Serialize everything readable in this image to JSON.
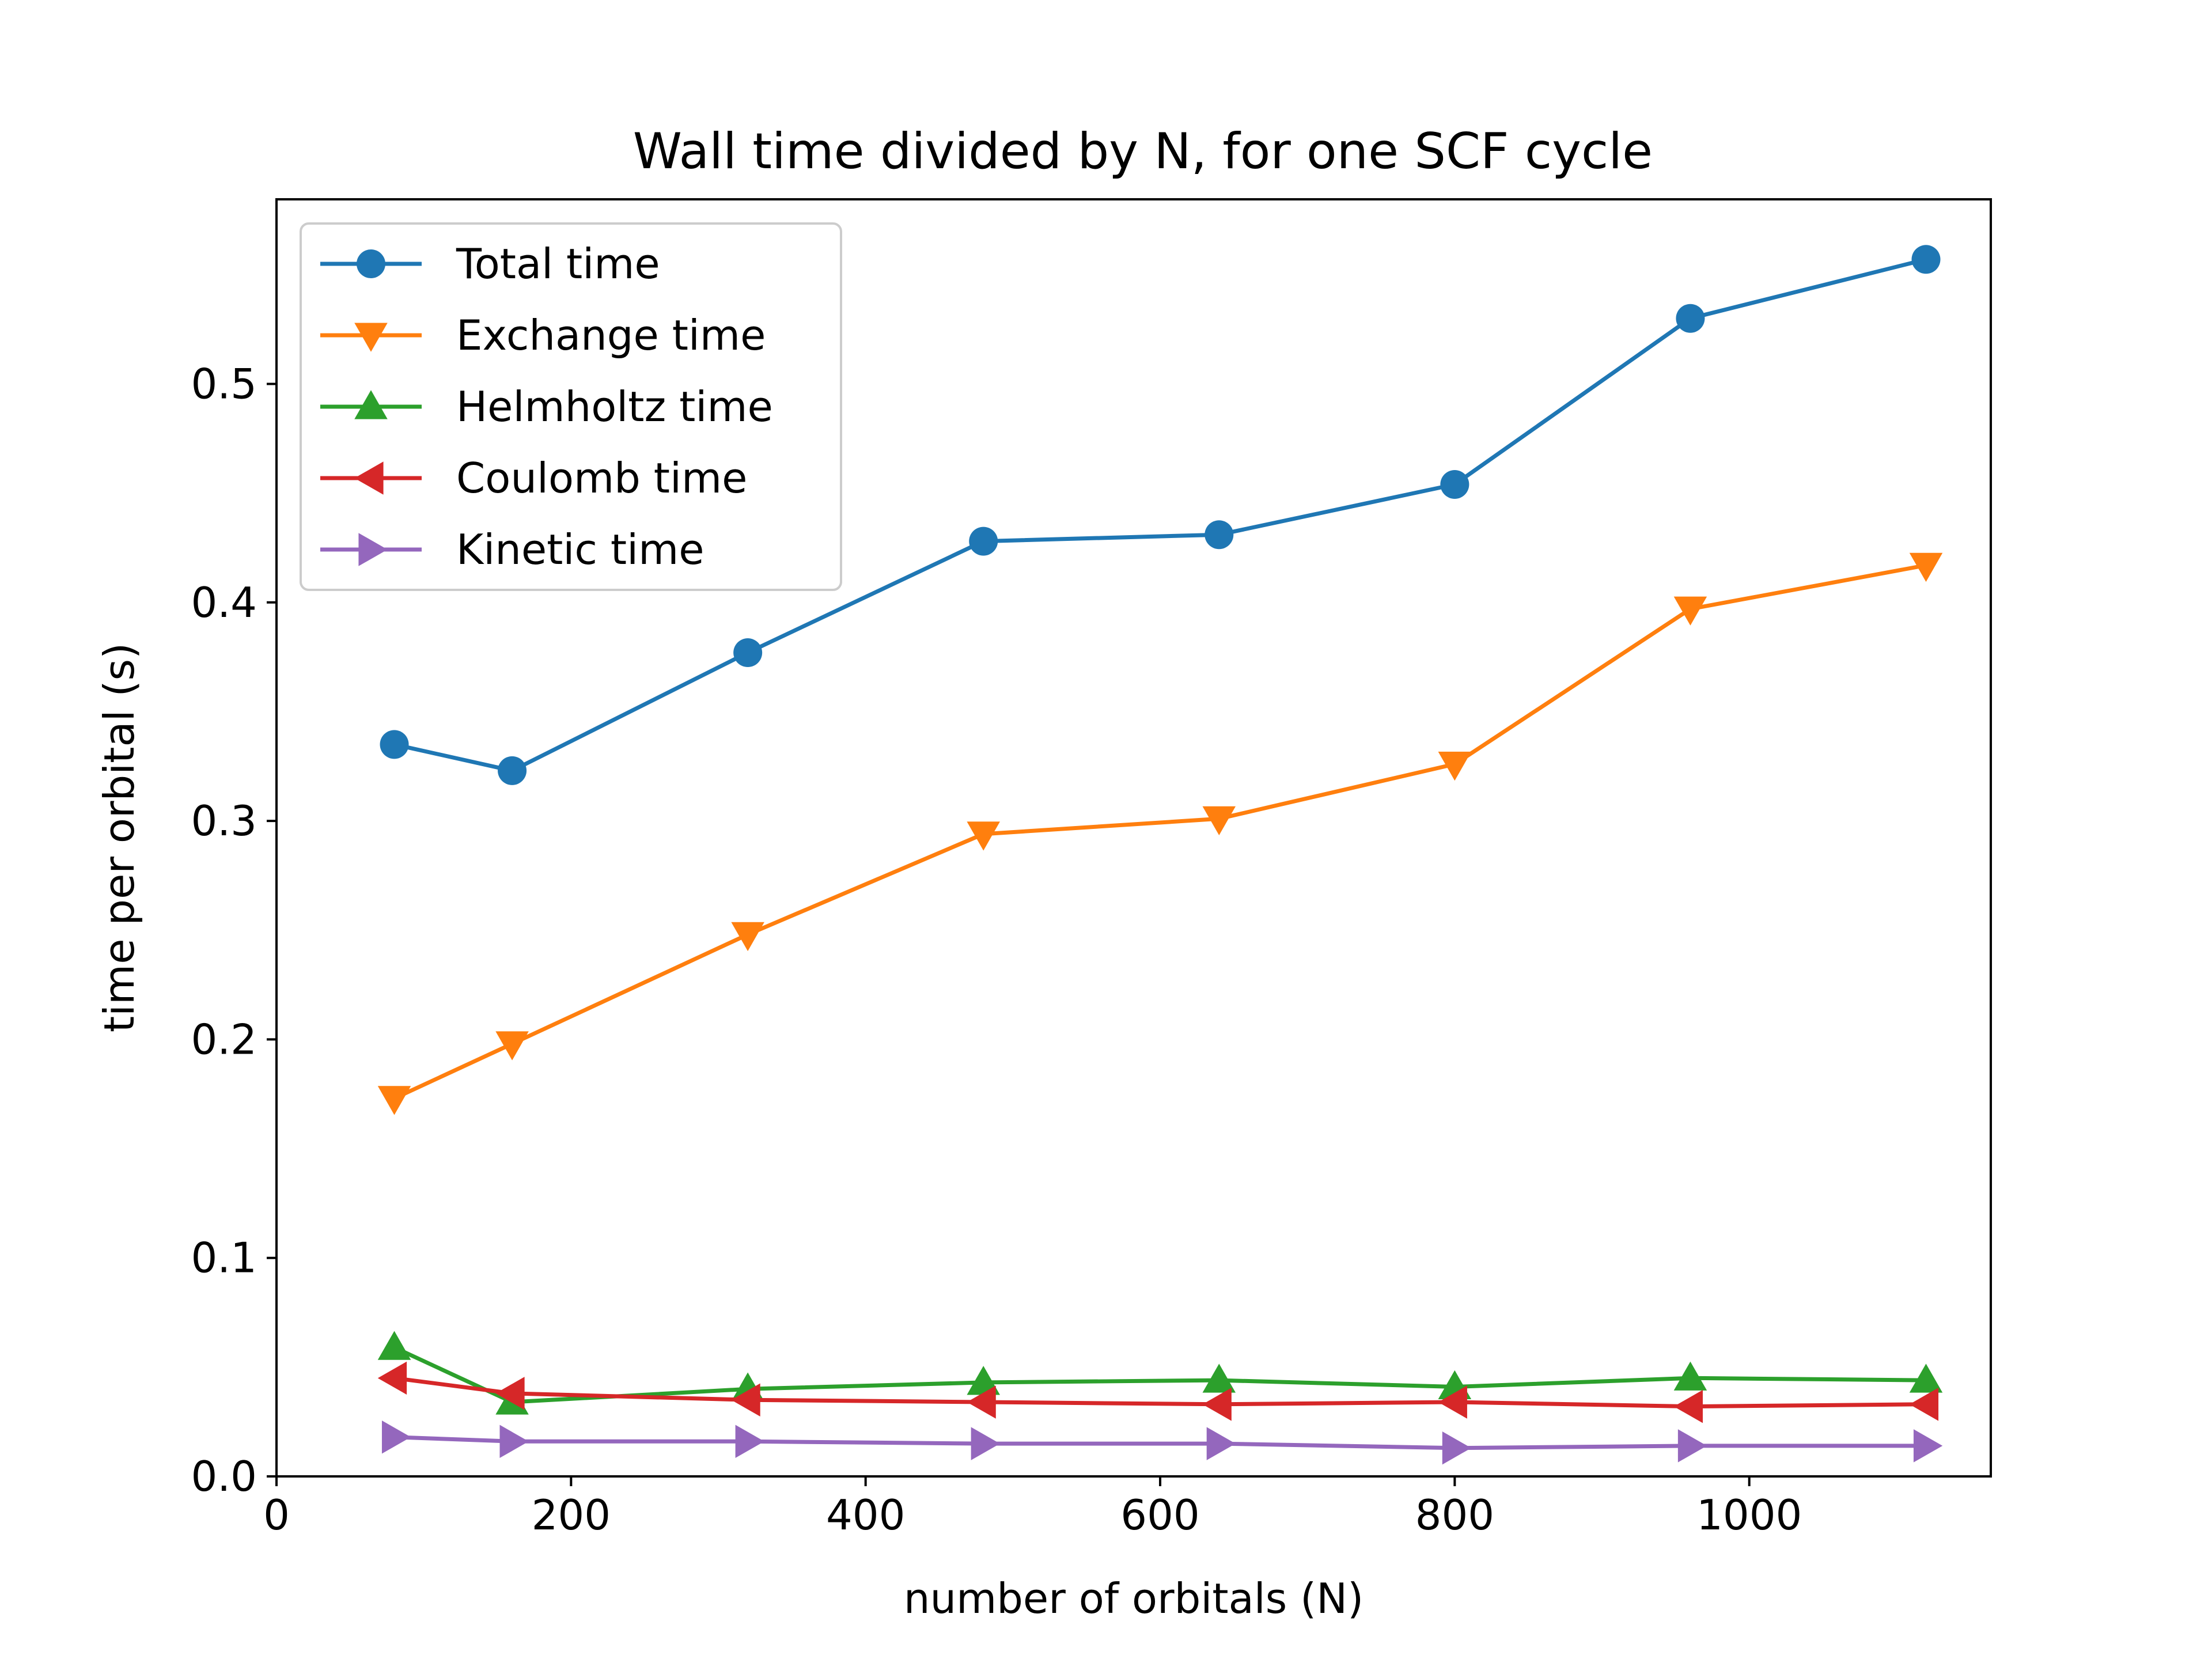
{
  "chart_data": {
    "type": "line",
    "title": "Wall time divided by N, for one SCF cycle",
    "xlabel": "number of orbitals (N)",
    "ylabel": "time per orbital (s)",
    "xlim": [
      0,
      1164
    ],
    "ylim": [
      0.0,
      0.5845
    ],
    "xticks": [
      0,
      200,
      400,
      600,
      800,
      1000
    ],
    "yticks": [
      0.0,
      0.1,
      0.2,
      0.3,
      0.4,
      0.5
    ],
    "xtick_labels": [
      "0",
      "200",
      "400",
      "600",
      "800",
      "1000"
    ],
    "ytick_labels": [
      "0.0",
      "0.1",
      "0.2",
      "0.3",
      "0.4",
      "0.5"
    ],
    "grid": false,
    "legend_position": "top-left",
    "x": [
      80,
      160,
      320,
      480,
      640,
      800,
      960,
      1120
    ],
    "series": [
      {
        "name": "Total time",
        "color": "#1f77b4",
        "marker": "circle",
        "values": [
          0.335,
          0.323,
          0.377,
          0.428,
          0.431,
          0.454,
          0.53,
          0.557
        ]
      },
      {
        "name": "Exchange time",
        "color": "#ff7f0e",
        "marker": "triangle-down",
        "values": [
          0.173,
          0.198,
          0.248,
          0.294,
          0.301,
          0.326,
          0.397,
          0.417
        ]
      },
      {
        "name": "Helmholtz time",
        "color": "#2ca02c",
        "marker": "triangle-up",
        "values": [
          0.059,
          0.034,
          0.04,
          0.043,
          0.044,
          0.041,
          0.045,
          0.044
        ]
      },
      {
        "name": "Coulomb time",
        "color": "#d62728",
        "marker": "triangle-left",
        "values": [
          0.045,
          0.038,
          0.035,
          0.034,
          0.033,
          0.034,
          0.032,
          0.033
        ]
      },
      {
        "name": "Kinetic time",
        "color": "#9467bd",
        "marker": "triangle-right",
        "values": [
          0.018,
          0.016,
          0.016,
          0.015,
          0.015,
          0.013,
          0.014,
          0.014
        ]
      }
    ]
  }
}
